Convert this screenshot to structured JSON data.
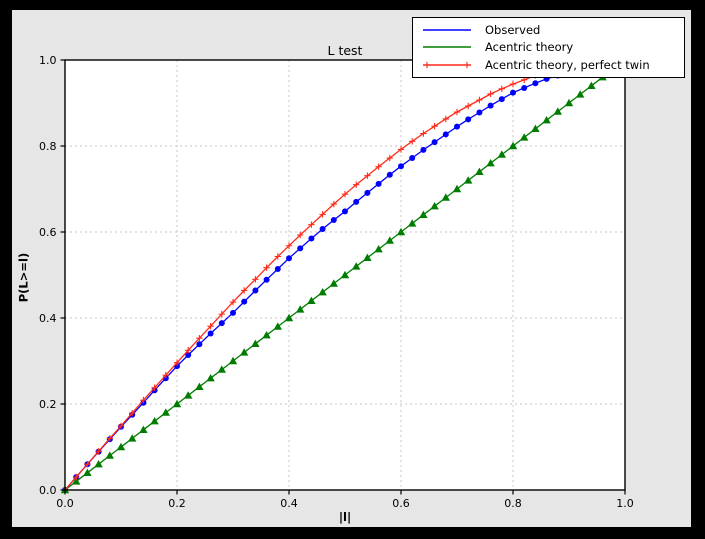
{
  "window": {
    "frame_color": "#000000",
    "figure_bg": "#e6e6e6",
    "axes_bg": "#ffffff"
  },
  "title": "L test",
  "axes": {
    "xlabel": "|l|",
    "ylabel": "P(L>=l)"
  },
  "legend": {
    "position": "upper right",
    "items": [
      {
        "label": "Observed",
        "color": "#0000ff",
        "marker": "none"
      },
      {
        "label": "Acentric theory",
        "color": "#007d00",
        "marker": "none"
      },
      {
        "label": "Acentric theory, perfect twin",
        "color": "#ff2a1a",
        "marker": "plus"
      }
    ]
  },
  "chart_data": {
    "type": "line",
    "title": "L test",
    "xlabel": "|l|",
    "ylabel": "P(L>=l)",
    "xlim": [
      0.0,
      1.0
    ],
    "ylim": [
      0.0,
      1.0
    ],
    "grid": "dotted gray lines at 0.2 intervals, both axes",
    "grid_color": "#c4c4c4",
    "grid_ticks": [
      0.2,
      0.4,
      0.6,
      0.8
    ],
    "x_tick_vals": [
      0.0,
      0.2,
      0.4,
      0.6,
      0.8,
      1.0
    ],
    "x_tick_labels": [
      "0.0",
      "0.2",
      "0.4",
      "0.6",
      "0.8",
      "1.0"
    ],
    "y_tick_vals": [
      0.0,
      0.2,
      0.4,
      0.6,
      0.8,
      1.0
    ],
    "y_tick_labels": [
      "0.0",
      "0.2",
      "0.4",
      "0.6",
      "0.8",
      "1.0"
    ],
    "legend_position": "upper right, overlapping plot top-right corner",
    "x": [
      0.0,
      0.02,
      0.04,
      0.06,
      0.08,
      0.1,
      0.12,
      0.14,
      0.16,
      0.18,
      0.2,
      0.22,
      0.24,
      0.26,
      0.28,
      0.3,
      0.32,
      0.34,
      0.36,
      0.38,
      0.4,
      0.42,
      0.44,
      0.46,
      0.48,
      0.5,
      0.52,
      0.54,
      0.56,
      0.58,
      0.6,
      0.62,
      0.64,
      0.66,
      0.68,
      0.7,
      0.72,
      0.74,
      0.76,
      0.78,
      0.8,
      0.82,
      0.84,
      0.86,
      0.88,
      0.9,
      0.92,
      0.94,
      0.96,
      0.98,
      1.0
    ],
    "series": [
      {
        "name": "Observed",
        "color": "#0000ff",
        "marker": "circle",
        "values": [
          0.0,
          0.03,
          0.06,
          0.089,
          0.118,
          0.147,
          0.175,
          0.203,
          0.232,
          0.26,
          0.288,
          0.314,
          0.339,
          0.364,
          0.388,
          0.412,
          0.438,
          0.464,
          0.489,
          0.514,
          0.539,
          0.562,
          0.585,
          0.607,
          0.628,
          0.648,
          0.67,
          0.691,
          0.712,
          0.733,
          0.753,
          0.772,
          0.791,
          0.809,
          0.827,
          0.845,
          0.862,
          0.878,
          0.894,
          0.909,
          0.924,
          0.935,
          0.946,
          0.956,
          0.964,
          0.972,
          0.98,
          0.986,
          0.991,
          0.996,
          1.0
        ]
      },
      {
        "name": "Acentric theory",
        "color": "#007d00",
        "marker": "triangle",
        "values": [
          0.0,
          0.02,
          0.04,
          0.06,
          0.08,
          0.1,
          0.12,
          0.14,
          0.16,
          0.18,
          0.2,
          0.22,
          0.24,
          0.26,
          0.28,
          0.3,
          0.32,
          0.34,
          0.36,
          0.38,
          0.4,
          0.42,
          0.44,
          0.46,
          0.48,
          0.5,
          0.52,
          0.54,
          0.56,
          0.58,
          0.6,
          0.62,
          0.64,
          0.66,
          0.68,
          0.7,
          0.72,
          0.74,
          0.76,
          0.78,
          0.8,
          0.82,
          0.84,
          0.86,
          0.88,
          0.9,
          0.92,
          0.94,
          0.96,
          0.98,
          1.0
        ]
      },
      {
        "name": "Acentric theory, perfect twin",
        "color": "#ff2a1a",
        "marker": "plus",
        "values": [
          0.0,
          0.03,
          0.06,
          0.09,
          0.12,
          0.149,
          0.179,
          0.209,
          0.238,
          0.267,
          0.296,
          0.325,
          0.353,
          0.381,
          0.409,
          0.437,
          0.464,
          0.49,
          0.517,
          0.543,
          0.568,
          0.593,
          0.617,
          0.641,
          0.665,
          0.688,
          0.71,
          0.731,
          0.752,
          0.772,
          0.792,
          0.811,
          0.829,
          0.846,
          0.863,
          0.879,
          0.893,
          0.907,
          0.921,
          0.933,
          0.944,
          0.954,
          0.964,
          0.972,
          0.979,
          0.986,
          0.991,
          0.995,
          0.998,
          0.999,
          1.0
        ]
      }
    ]
  }
}
